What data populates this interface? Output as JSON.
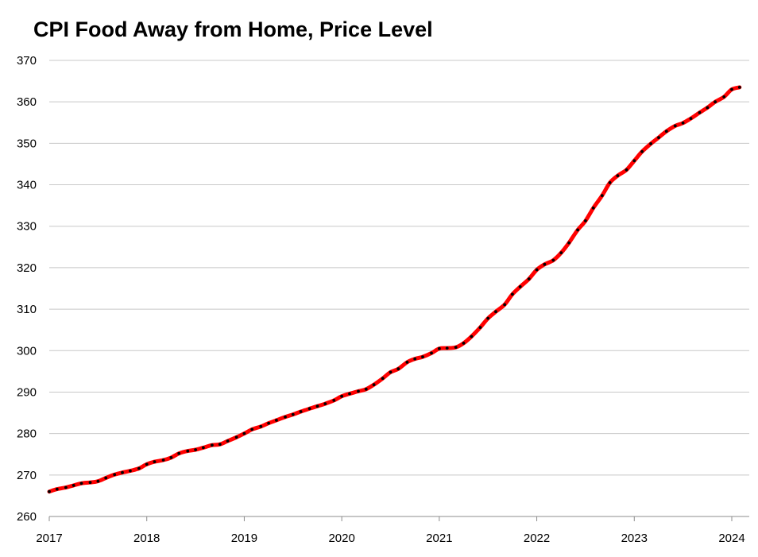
{
  "chart_data": {
    "type": "line",
    "title": "CPI Food Away from Home, Price Level",
    "xlabel": "",
    "ylabel": "",
    "ylim": [
      260,
      370
    ],
    "xlim": [
      2017.0,
      2024.1
    ],
    "y_ticks": [
      260,
      270,
      280,
      290,
      300,
      310,
      320,
      330,
      340,
      350,
      360,
      370
    ],
    "x_ticks": [
      2017,
      2018,
      2019,
      2020,
      2021,
      2022,
      2023,
      2024
    ],
    "grid": true,
    "legend": "none",
    "colors": {
      "line": "#ff0000",
      "dots": "#000000",
      "grid": "#c8c8c8",
      "axis": "#8c8c8c"
    },
    "series": [
      {
        "points": [
          [
            2017.0,
            266.0
          ],
          [
            2017.08,
            266.6
          ],
          [
            2017.17,
            267.0
          ],
          [
            2017.25,
            267.5
          ],
          [
            2017.33,
            268.0
          ],
          [
            2017.42,
            268.2
          ],
          [
            2017.5,
            268.5
          ],
          [
            2017.58,
            269.3
          ],
          [
            2017.67,
            270.1
          ],
          [
            2017.75,
            270.6
          ],
          [
            2017.83,
            271.0
          ],
          [
            2017.92,
            271.6
          ],
          [
            2018.0,
            272.6
          ],
          [
            2018.08,
            273.2
          ],
          [
            2018.17,
            273.6
          ],
          [
            2018.25,
            274.2
          ],
          [
            2018.33,
            275.2
          ],
          [
            2018.42,
            275.8
          ],
          [
            2018.5,
            276.1
          ],
          [
            2018.58,
            276.6
          ],
          [
            2018.67,
            277.2
          ],
          [
            2018.75,
            277.4
          ],
          [
            2018.83,
            278.2
          ],
          [
            2018.92,
            279.1
          ],
          [
            2019.0,
            280.0
          ],
          [
            2019.08,
            281.0
          ],
          [
            2019.17,
            281.7
          ],
          [
            2019.25,
            282.5
          ],
          [
            2019.33,
            283.2
          ],
          [
            2019.42,
            284.0
          ],
          [
            2019.5,
            284.6
          ],
          [
            2019.58,
            285.3
          ],
          [
            2019.67,
            286.0
          ],
          [
            2019.75,
            286.6
          ],
          [
            2019.83,
            287.2
          ],
          [
            2019.92,
            288.0
          ],
          [
            2020.0,
            289.0
          ],
          [
            2020.08,
            289.6
          ],
          [
            2020.17,
            290.2
          ],
          [
            2020.25,
            290.7
          ],
          [
            2020.33,
            291.8
          ],
          [
            2020.42,
            293.3
          ],
          [
            2020.5,
            294.8
          ],
          [
            2020.58,
            295.6
          ],
          [
            2020.67,
            297.2
          ],
          [
            2020.75,
            298.0
          ],
          [
            2020.83,
            298.5
          ],
          [
            2020.92,
            299.4
          ],
          [
            2021.0,
            300.5
          ],
          [
            2021.08,
            300.6
          ],
          [
            2021.17,
            300.8
          ],
          [
            2021.25,
            301.8
          ],
          [
            2021.33,
            303.4
          ],
          [
            2021.42,
            305.6
          ],
          [
            2021.5,
            307.8
          ],
          [
            2021.58,
            309.4
          ],
          [
            2021.67,
            311.1
          ],
          [
            2021.75,
            313.6
          ],
          [
            2021.83,
            315.4
          ],
          [
            2021.92,
            317.3
          ],
          [
            2022.0,
            319.5
          ],
          [
            2022.08,
            320.8
          ],
          [
            2022.17,
            321.8
          ],
          [
            2022.25,
            323.6
          ],
          [
            2022.33,
            326.0
          ],
          [
            2022.42,
            329.1
          ],
          [
            2022.5,
            331.3
          ],
          [
            2022.58,
            334.4
          ],
          [
            2022.67,
            337.4
          ],
          [
            2022.75,
            340.5
          ],
          [
            2022.83,
            342.2
          ],
          [
            2022.92,
            343.6
          ],
          [
            2023.0,
            345.8
          ],
          [
            2023.08,
            348.0
          ],
          [
            2023.17,
            349.9
          ],
          [
            2023.25,
            351.4
          ],
          [
            2023.33,
            352.9
          ],
          [
            2023.42,
            354.2
          ],
          [
            2023.5,
            354.9
          ],
          [
            2023.58,
            356.0
          ],
          [
            2023.67,
            357.4
          ],
          [
            2023.75,
            358.6
          ],
          [
            2023.83,
            360.0
          ],
          [
            2023.92,
            361.2
          ],
          [
            2024.0,
            363.0
          ],
          [
            2024.08,
            363.5
          ]
        ]
      }
    ]
  }
}
